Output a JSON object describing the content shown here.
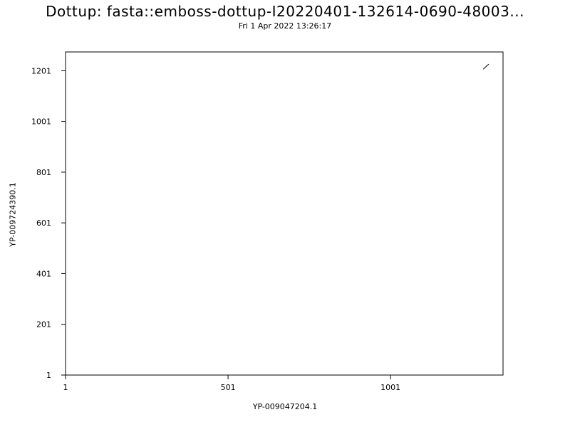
{
  "chart_data": {
    "type": "line",
    "title": "Dottup: fasta::emboss-dottup-I20220401-132614-0690-48003...",
    "subtitle": "Fri  1 Apr 2022 13:26:17",
    "xlabel": "YP-009047204.1",
    "ylabel": "YP-009724390.1",
    "xlim": [
      1,
      1347
    ],
    "ylim": [
      1,
      1275
    ],
    "xticks": [
      1,
      501,
      1001
    ],
    "yticks": [
      1,
      201,
      401,
      601,
      801,
      1001,
      1201
    ],
    "grid": false,
    "series": [
      {
        "x": [
          1286,
          1303
        ],
        "y": [
          1207,
          1227
        ]
      }
    ]
  }
}
